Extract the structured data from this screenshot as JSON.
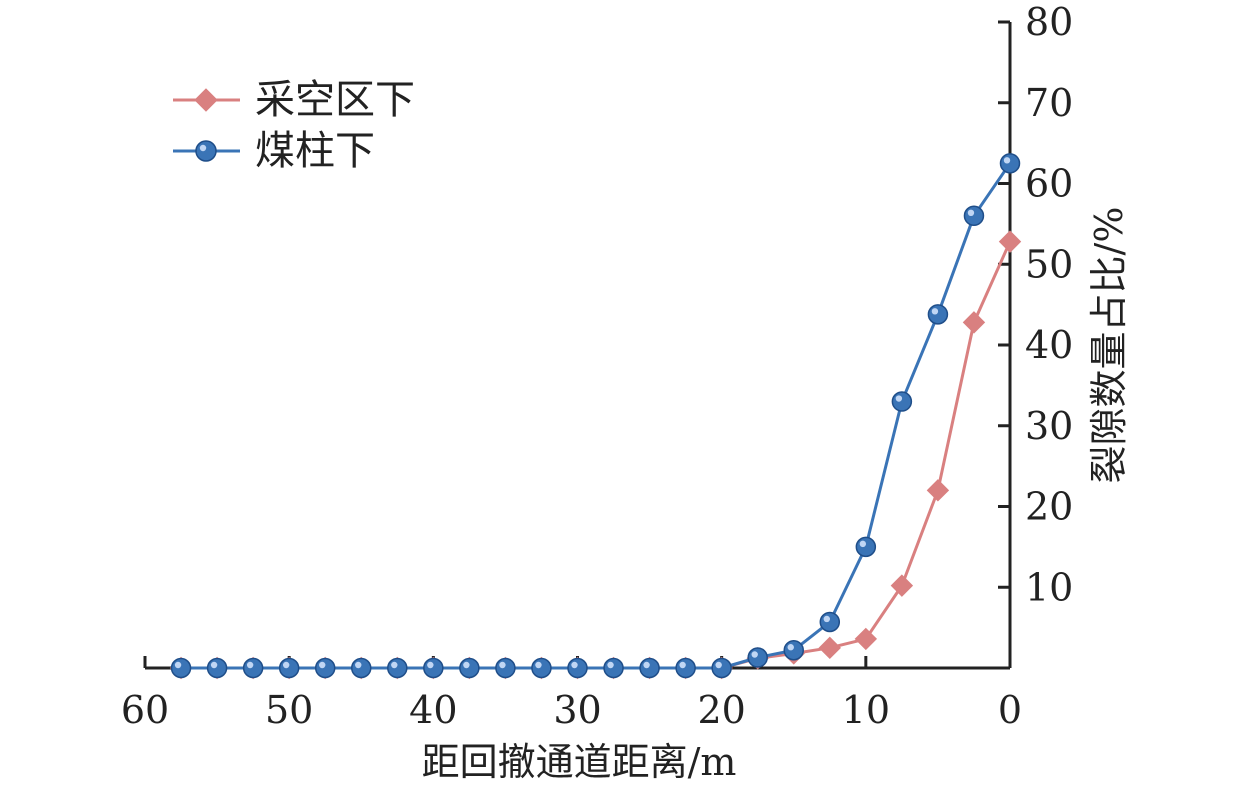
{
  "chart_data": {
    "type": "line",
    "xlabel": "距回撤通道距离/m",
    "ylabel": "裂隙数量占比/%",
    "xlim": [
      60,
      0
    ],
    "ylim": [
      0,
      80
    ],
    "x_ticks": [
      60,
      50,
      40,
      30,
      20,
      10,
      0
    ],
    "x_tick_labels": [
      "60",
      "50",
      "40",
      "30",
      "20",
      "10",
      "0"
    ],
    "y_ticks": [
      10,
      20,
      30,
      40,
      50,
      60,
      70,
      80
    ],
    "y_tick_labels": [
      "10",
      "20",
      "30",
      "40",
      "50",
      "60",
      "70",
      "80"
    ],
    "x": [
      57.5,
      55,
      52.5,
      50,
      47.5,
      45,
      42.5,
      40,
      37.5,
      35,
      32.5,
      30,
      27.5,
      25,
      22.5,
      20,
      17.5,
      15,
      12.5,
      10,
      7.5,
      5,
      2.5,
      0
    ],
    "series": [
      {
        "name": "采空区下",
        "color": "#d98080",
        "marker": "diamond",
        "values": [
          0,
          0,
          0,
          0,
          0,
          0,
          0,
          0,
          0,
          0,
          0,
          0,
          0,
          0,
          0,
          0,
          1.2,
          1.8,
          2.5,
          3.6,
          10.2,
          22,
          42.8,
          52.8
        ]
      },
      {
        "name": "煤柱下",
        "color": "#3a74b6",
        "marker": "circle",
        "values": [
          0,
          0,
          0,
          0,
          0,
          0,
          0,
          0,
          0,
          0,
          0,
          0,
          0,
          0,
          0,
          0,
          1.3,
          2.2,
          5.7,
          15,
          33,
          43.8,
          56,
          62.5
        ]
      }
    ],
    "legend_position": "top-left",
    "grid": false,
    "y_axis_side": "right"
  }
}
